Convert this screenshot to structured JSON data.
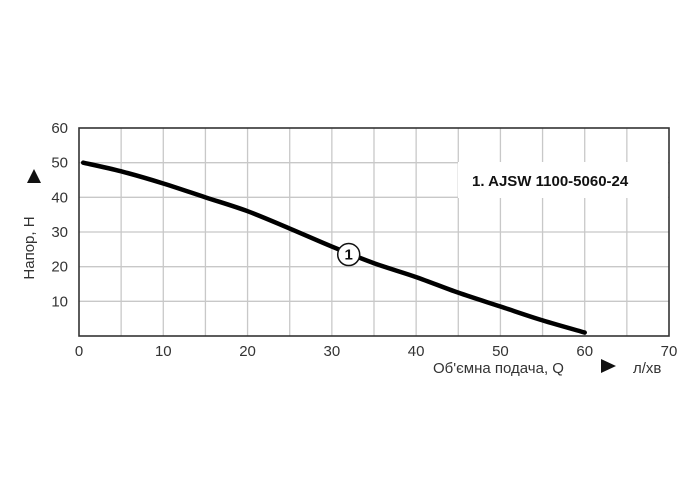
{
  "chart_data": {
    "type": "line",
    "title": "",
    "xlabel": "Об'ємна подача, Q",
    "xunit": "л/хв",
    "ylabel": "Напор, H",
    "xlim": [
      0,
      70
    ],
    "ylim": [
      0,
      60
    ],
    "x_ticks": [
      0,
      10,
      20,
      30,
      40,
      50,
      60,
      70
    ],
    "y_ticks": [
      10,
      20,
      30,
      40,
      50,
      60
    ],
    "grid": true,
    "x_grid_step": 5,
    "y_grid_step": 10,
    "legend": {
      "position": "top-right",
      "entries": [
        "1. AJSW 1100-5060-24"
      ]
    },
    "series": [
      {
        "name": "1. AJSW 1100-5060-24",
        "marker_label": "1",
        "marker_at": [
          32,
          23.5
        ],
        "color": "#000000",
        "x": [
          0.5,
          5,
          10,
          15,
          20,
          25,
          30,
          35,
          40,
          45,
          50,
          55,
          60
        ],
        "y": [
          50,
          47.5,
          44,
          40,
          36,
          31,
          25.8,
          21,
          17,
          12.5,
          8.5,
          4.5,
          1
        ]
      }
    ]
  },
  "colors": {
    "grid": "#c8c8c8",
    "axis": "#333333",
    "curve": "#000000",
    "background": "#ffffff"
  }
}
